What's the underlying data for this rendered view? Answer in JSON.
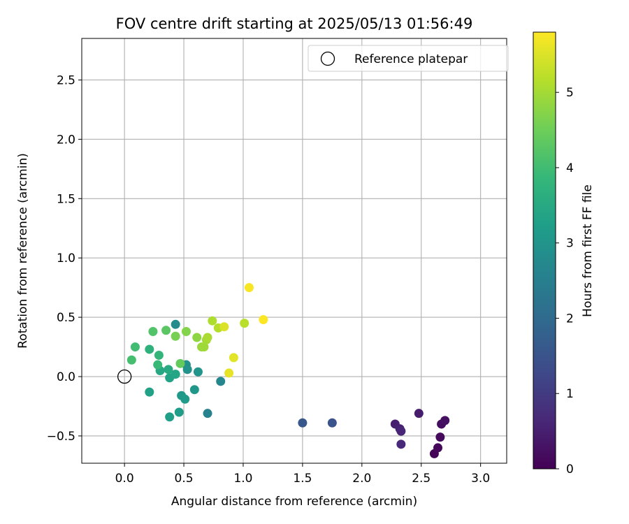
{
  "chart_data": {
    "type": "scatter",
    "title": "FOV centre drift starting at 2025/05/13 01:56:49",
    "xlabel": "Angular distance from reference (arcmin)",
    "ylabel": "Rotation from reference (arcmin)",
    "xlim": [
      -0.36,
      3.22
    ],
    "ylim": [
      -0.73,
      2.85
    ],
    "xticks": [
      0.0,
      0.5,
      1.0,
      1.5,
      2.0,
      2.5,
      3.0
    ],
    "xtick_labels": [
      "0.0",
      "0.5",
      "1.0",
      "1.5",
      "2.0",
      "2.5",
      "3.0"
    ],
    "yticks": [
      -0.5,
      0.0,
      0.5,
      1.0,
      1.5,
      2.0,
      2.5
    ],
    "ytick_labels": [
      "−0.5",
      "0.0",
      "0.5",
      "1.0",
      "1.5",
      "2.0",
      "2.5"
    ],
    "grid": true,
    "legend": {
      "position": "upper-right",
      "entries": [
        {
          "label": "Reference platepar",
          "marker": "open-circle"
        }
      ]
    },
    "reference_point": {
      "x": 0.0,
      "y": 0.0
    },
    "colorbar": {
      "label": "Hours from first FF file",
      "colormap": "viridis",
      "range": [
        0,
        5.8
      ],
      "ticks": [
        0,
        1,
        2,
        3,
        4,
        5
      ],
      "tick_labels": [
        "0",
        "1",
        "2",
        "3",
        "4",
        "5"
      ]
    },
    "series": [
      {
        "points": [
          {
            "x": 2.61,
            "y": -0.65,
            "h": 0.05
          },
          {
            "x": 2.64,
            "y": -0.6,
            "h": 0.1
          },
          {
            "x": 2.66,
            "y": -0.51,
            "h": 0.15
          },
          {
            "x": 2.67,
            "y": -0.4,
            "h": 0.2
          },
          {
            "x": 2.7,
            "y": -0.37,
            "h": 0.25
          },
          {
            "x": 2.48,
            "y": -0.31,
            "h": 0.45
          },
          {
            "x": 2.28,
            "y": -0.4,
            "h": 0.5
          },
          {
            "x": 2.32,
            "y": -0.44,
            "h": 0.55
          },
          {
            "x": 2.33,
            "y": -0.46,
            "h": 0.6
          },
          {
            "x": 2.33,
            "y": -0.57,
            "h": 0.65
          },
          {
            "x": 1.75,
            "y": -0.39,
            "h": 1.5
          },
          {
            "x": 1.5,
            "y": -0.39,
            "h": 1.6
          },
          {
            "x": 0.7,
            "y": -0.31,
            "h": 2.6
          },
          {
            "x": 0.81,
            "y": -0.04,
            "h": 2.7
          },
          {
            "x": 0.43,
            "y": 0.44,
            "h": 2.8
          },
          {
            "x": 0.52,
            "y": 0.1,
            "h": 2.9
          },
          {
            "x": 0.53,
            "y": 0.06,
            "h": 2.95
          },
          {
            "x": 0.62,
            "y": 0.04,
            "h": 3.0
          },
          {
            "x": 0.59,
            "y": -0.11,
            "h": 3.05
          },
          {
            "x": 0.48,
            "y": -0.16,
            "h": 3.1
          },
          {
            "x": 0.51,
            "y": -0.19,
            "h": 3.15
          },
          {
            "x": 0.46,
            "y": -0.3,
            "h": 3.2
          },
          {
            "x": 0.38,
            "y": -0.34,
            "h": 3.25
          },
          {
            "x": 0.21,
            "y": -0.13,
            "h": 3.3
          },
          {
            "x": 0.38,
            "y": -0.01,
            "h": 3.35
          },
          {
            "x": 0.43,
            "y": 0.02,
            "h": 3.4
          },
          {
            "x": 0.3,
            "y": 0.05,
            "h": 3.45
          },
          {
            "x": 0.37,
            "y": 0.06,
            "h": 3.5
          },
          {
            "x": 0.21,
            "y": 0.23,
            "h": 3.7
          },
          {
            "x": 0.29,
            "y": 0.18,
            "h": 3.8
          },
          {
            "x": 0.28,
            "y": 0.1,
            "h": 3.9
          },
          {
            "x": 0.09,
            "y": 0.25,
            "h": 4.0
          },
          {
            "x": 0.06,
            "y": 0.14,
            "h": 4.05
          },
          {
            "x": 0.24,
            "y": 0.38,
            "h": 4.2
          },
          {
            "x": 0.35,
            "y": 0.39,
            "h": 4.3
          },
          {
            "x": 0.47,
            "y": 0.11,
            "h": 4.4
          },
          {
            "x": 0.43,
            "y": 0.34,
            "h": 4.6
          },
          {
            "x": 0.52,
            "y": 0.38,
            "h": 4.7
          },
          {
            "x": 0.61,
            "y": 0.33,
            "h": 4.8
          },
          {
            "x": 0.65,
            "y": 0.25,
            "h": 4.9
          },
          {
            "x": 0.67,
            "y": 0.25,
            "h": 4.95
          },
          {
            "x": 0.69,
            "y": 0.31,
            "h": 5.0
          },
          {
            "x": 0.7,
            "y": 0.33,
            "h": 5.05
          },
          {
            "x": 0.74,
            "y": 0.47,
            "h": 5.1
          },
          {
            "x": 0.79,
            "y": 0.41,
            "h": 5.15
          },
          {
            "x": 1.01,
            "y": 0.45,
            "h": 5.2
          },
          {
            "x": 0.84,
            "y": 0.42,
            "h": 5.5
          },
          {
            "x": 0.92,
            "y": 0.16,
            "h": 5.55
          },
          {
            "x": 0.88,
            "y": 0.03,
            "h": 5.6
          },
          {
            "x": 1.05,
            "y": 0.75,
            "h": 5.75
          },
          {
            "x": 1.17,
            "y": 0.48,
            "h": 5.8
          }
        ]
      }
    ]
  }
}
